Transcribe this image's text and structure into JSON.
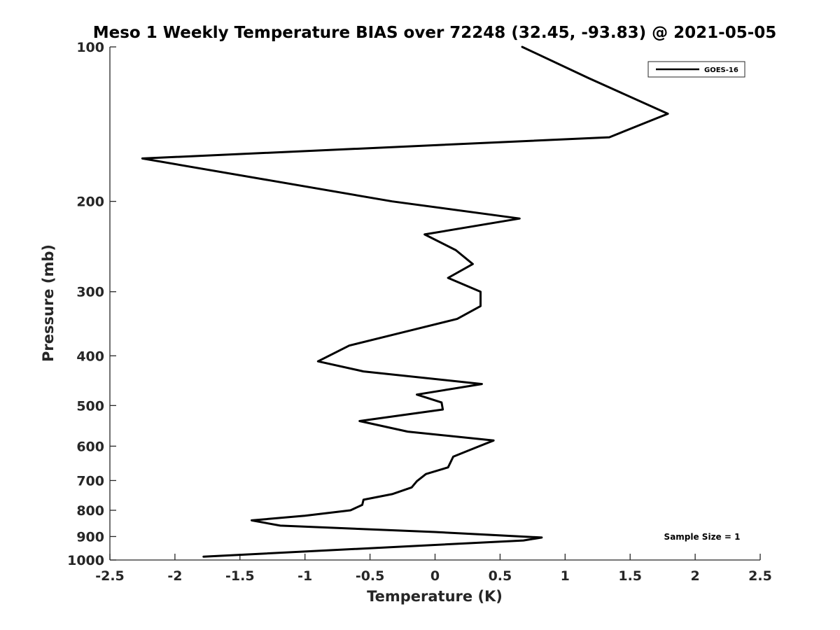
{
  "chart_data": {
    "type": "line",
    "title": "Meso 1 Weekly Temperature BIAS over 72248 (32.45, -93.83) @ 2021-05-05",
    "xlabel": "Temperature (K)",
    "ylabel": "Pressure (mb)",
    "xlim": [
      -2.5,
      2.5
    ],
    "ylim": [
      1000,
      100
    ],
    "yscale": "log",
    "xticks": [
      -2.5,
      -2,
      -1.5,
      -1,
      -0.5,
      0,
      0.5,
      1,
      1.5,
      2,
      2.5
    ],
    "xtick_labels": [
      "-2.5",
      "-2",
      "-1.5",
      "-1",
      "-0.5",
      "0",
      "0.5",
      "1",
      "1.5",
      "2",
      "2.5"
    ],
    "yticks": [
      100,
      200,
      300,
      400,
      500,
      600,
      700,
      800,
      900,
      1000
    ],
    "ytick_labels": [
      "100",
      "200",
      "300",
      "400",
      "500",
      "600",
      "700",
      "800",
      "900",
      "1000"
    ],
    "grid": false,
    "legend_position": "top-right",
    "annotation": "Sample Size = 1",
    "series": [
      {
        "name": "GOES-16",
        "color": "#000000",
        "x": [
          0.67,
          1.18,
          1.79,
          1.34,
          -2.25,
          -0.33,
          0.65,
          -0.08,
          0.16,
          0.29,
          0.1,
          0.35,
          0.35,
          0.17,
          -0.23,
          -0.66,
          -0.9,
          -0.55,
          0.36,
          -0.14,
          0.05,
          0.06,
          -0.58,
          -0.21,
          0.45,
          0.27,
          0.14,
          0.1,
          -0.07,
          -0.14,
          -0.18,
          -0.33,
          -0.55,
          -0.56,
          -0.65,
          -1.0,
          -1.41,
          -1.19,
          0.0,
          0.82,
          0.68,
          -1.78
        ],
        "y": [
          100,
          115,
          135,
          150,
          165,
          200,
          216,
          232,
          249,
          265,
          282,
          300,
          320,
          339,
          359,
          382,
          410,
          429,
          454,
          476,
          493,
          509,
          536,
          562,
          585,
          610,
          629,
          660,
          680,
          702,
          722,
          744,
          763,
          781,
          800,
          820,
          837,
          857,
          882,
          904,
          916,
          985
        ]
      }
    ]
  }
}
